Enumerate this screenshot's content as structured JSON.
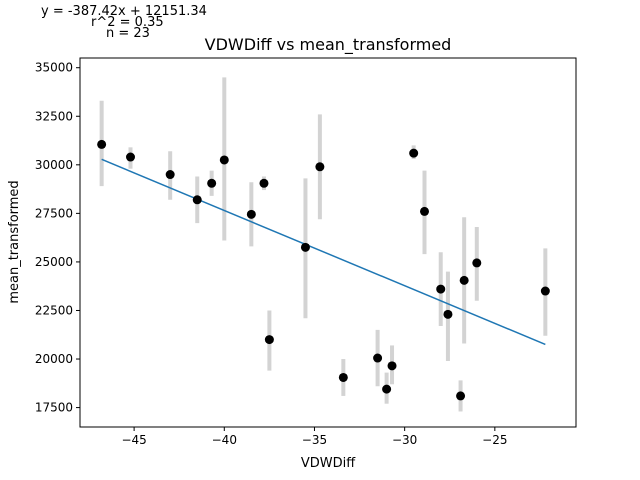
{
  "chart_data": {
    "type": "scatter",
    "title": "VDWDiff vs mean_transformed",
    "xlabel": "VDWDiff",
    "ylabel": "mean_transformed",
    "xlim": [
      -48,
      -20.5
    ],
    "ylim": [
      16500,
      35500
    ],
    "xticks": [
      -45,
      -40,
      -35,
      -30,
      -25
    ],
    "yticks": [
      17500,
      20000,
      22500,
      25000,
      27500,
      30000,
      32500,
      35000
    ],
    "xtick_labels": [
      "−45",
      "−40",
      "−35",
      "−30",
      "−25"
    ],
    "ytick_labels": [
      "17500",
      "20000",
      "22500",
      "25000",
      "27500",
      "30000",
      "32500",
      "35000"
    ],
    "grid": false,
    "annotations": {
      "equation": "y = -387.42x + 12151.34",
      "r2": "r^2 = 0.35",
      "n": "n = 23"
    },
    "regression": {
      "slope": -387.42,
      "intercept": 12151.34,
      "x_range": [
        -46.8,
        -22.2
      ],
      "color": "#1f77b4"
    },
    "marker_color": "#000000",
    "errorbar_color": "#d3d3d3",
    "points": [
      {
        "x": -46.8,
        "y": 31050,
        "low": 28900,
        "high": 33300
      },
      {
        "x": -45.2,
        "y": 30400,
        "low": 29800,
        "high": 30900
      },
      {
        "x": -43.0,
        "y": 29500,
        "low": 28200,
        "high": 30700
      },
      {
        "x": -41.5,
        "y": 28200,
        "low": 27000,
        "high": 29400
      },
      {
        "x": -40.7,
        "y": 29050,
        "low": 28400,
        "high": 29700
      },
      {
        "x": -40.0,
        "y": 30250,
        "low": 26100,
        "high": 34500
      },
      {
        "x": -38.5,
        "y": 27450,
        "low": 25800,
        "high": 29100
      },
      {
        "x": -37.8,
        "y": 29050,
        "low": 28700,
        "high": 29400
      },
      {
        "x": -37.5,
        "y": 21000,
        "low": 19400,
        "high": 22500
      },
      {
        "x": -35.5,
        "y": 25750,
        "low": 22100,
        "high": 29300
      },
      {
        "x": -34.7,
        "y": 29900,
        "low": 27200,
        "high": 32600
      },
      {
        "x": -33.4,
        "y": 19050,
        "low": 18100,
        "high": 20000
      },
      {
        "x": -31.5,
        "y": 20050,
        "low": 18600,
        "high": 21500
      },
      {
        "x": -31.0,
        "y": 18450,
        "low": 17700,
        "high": 19300
      },
      {
        "x": -30.7,
        "y": 19650,
        "low": 18700,
        "high": 20700
      },
      {
        "x": -29.5,
        "y": 30600,
        "low": 30300,
        "high": 31000
      },
      {
        "x": -28.9,
        "y": 27600,
        "low": 25400,
        "high": 29700
      },
      {
        "x": -28.0,
        "y": 23600,
        "low": 21700,
        "high": 25500
      },
      {
        "x": -27.6,
        "y": 22300,
        "low": 19900,
        "high": 24500
      },
      {
        "x": -26.9,
        "y": 18100,
        "low": 17300,
        "high": 18900
      },
      {
        "x": -26.7,
        "y": 24050,
        "low": 20800,
        "high": 27300
      },
      {
        "x": -26.0,
        "y": 24950,
        "low": 23000,
        "high": 26800
      },
      {
        "x": -22.2,
        "y": 23500,
        "low": 21200,
        "high": 25700
      }
    ]
  }
}
